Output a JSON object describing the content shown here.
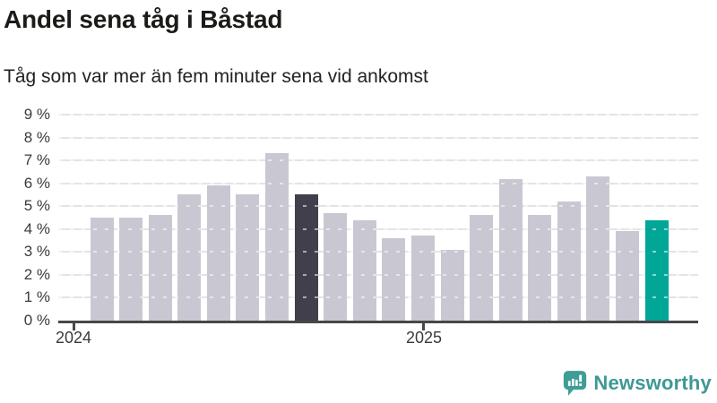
{
  "header": {
    "title": "Andel sena tåg i Båstad",
    "subtitle": "Tåg som var mer än fem minuter sena vid ankomst"
  },
  "footer": {
    "brand": "Newsworthy",
    "brand_color": "#3e9894"
  },
  "chart_data": {
    "type": "bar",
    "title": "Andel sena tåg i Båstad",
    "subtitle": "Tåg som var mer än fem minuter sena vid ankomst",
    "unit": "%",
    "x": [
      "2024-02",
      "2024-03",
      "2024-04",
      "2024-05",
      "2024-06",
      "2024-07",
      "2024-08",
      "2024-09",
      "2024-10",
      "2024-11",
      "2024-12",
      "2025-01",
      "2025-02",
      "2025-03",
      "2025-04",
      "2025-05",
      "2025-06",
      "2025-07",
      "2025-08",
      "2025-09"
    ],
    "values": [
      4.5,
      4.5,
      4.6,
      5.5,
      5.9,
      5.5,
      7.3,
      5.5,
      4.7,
      4.4,
      3.6,
      3.7,
      3.1,
      4.6,
      6.2,
      4.6,
      5.2,
      6.3,
      3.9,
      4.4
    ],
    "highlight_dark_index": 7,
    "highlight_teal_index": 19,
    "ylim": [
      0,
      9
    ],
    "ytick_labels": [
      "0 %",
      "1 %",
      "2 %",
      "3 %",
      "4 %",
      "5 %",
      "6 %",
      "7 %",
      "8 %",
      "9 %"
    ],
    "xticks": [
      {
        "label": "2024",
        "month_offset": 0
      },
      {
        "label": "2025",
        "month_offset": 12
      }
    ],
    "grid": true,
    "legend": "none",
    "colors": {
      "bar_default": "#c9c8d2",
      "bar_dark": "#413f4c",
      "bar_teal": "#00a796",
      "gridline": "#e4e4e6",
      "axis": "#47474a",
      "label_text": "#3b3b3b"
    }
  }
}
